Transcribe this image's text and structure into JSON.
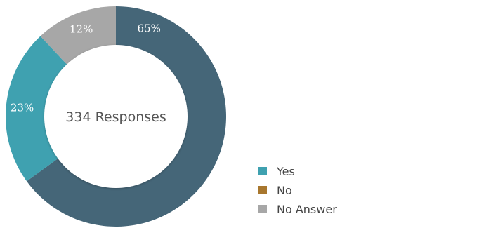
{
  "chart_data": {
    "type": "pie",
    "variant": "donut",
    "center_text": "334 Responses",
    "slices": [
      {
        "name": "Yes",
        "value": 23,
        "label": "23%",
        "color": "#3fa1b0"
      },
      {
        "name": "No",
        "value": 65,
        "label": "65%",
        "color": "#456678"
      },
      {
        "name": "No Answer",
        "value": 12,
        "label": "12%",
        "color": "#a7a7a7"
      }
    ],
    "draw_order": [
      1,
      0,
      2
    ],
    "legend": {
      "placement": "bottom-right",
      "entries": [
        {
          "name": "Yes",
          "color": "#3fa1b0"
        },
        {
          "name": "No",
          "color": "#a8772e"
        },
        {
          "name": "No Answer",
          "color": "#a7a7a7"
        }
      ]
    }
  }
}
